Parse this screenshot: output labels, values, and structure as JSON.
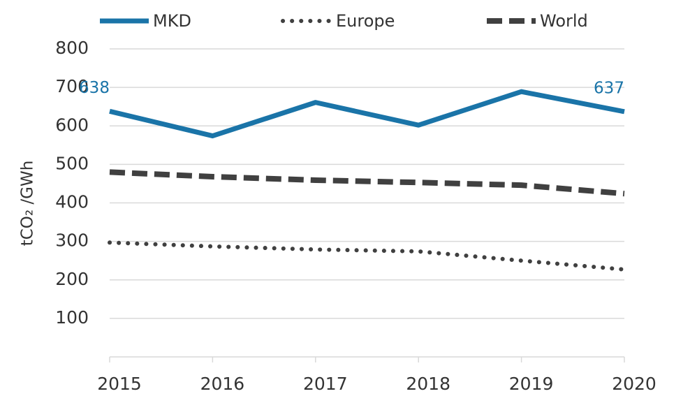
{
  "chart_data": {
    "type": "line",
    "y_label": "tCO₂ /GWh",
    "categories": [
      "2015",
      "2016",
      "2017",
      "2018",
      "2019",
      "2020"
    ],
    "series": [
      {
        "name": "MKD",
        "color": "#1a74a8",
        "style": "solid",
        "values": [
          638,
          574,
          661,
          602,
          689,
          637
        ],
        "value_labels": [
          "638",
          null,
          null,
          null,
          null,
          "637"
        ]
      },
      {
        "name": "Europe",
        "color": "#404040",
        "style": "dotted",
        "values": [
          297,
          287,
          279,
          274,
          250,
          227
        ]
      },
      {
        "name": "World",
        "color": "#404040",
        "style": "dashed",
        "values": [
          480,
          468,
          459,
          453,
          446,
          424
        ]
      }
    ],
    "ylim": [
      0,
      800
    ],
    "yticks": [
      100,
      200,
      300,
      400,
      500,
      600,
      700,
      800
    ],
    "grid": true,
    "legend": "top"
  }
}
